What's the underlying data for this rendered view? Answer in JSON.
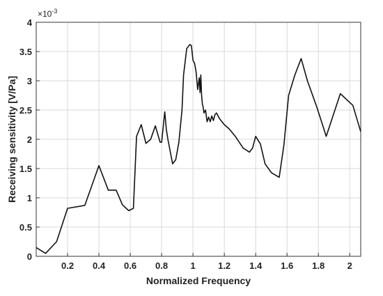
{
  "chart_data": {
    "type": "line",
    "xlabel": "Normalized Frequency",
    "ylabel": "Receiving sensitivity [V/Pa]",
    "y_exponent_base": "×10",
    "y_exponent_power": "-3",
    "xlim": [
      0.0,
      2.07
    ],
    "ylim": [
      0,
      4
    ],
    "x_ticks": [
      0.2,
      0.4,
      0.6,
      0.8,
      1,
      1.2,
      1.4,
      1.6,
      1.8,
      2
    ],
    "x_tick_labels": [
      "0.2",
      "0.4",
      "0.6",
      "0.8",
      "1",
      "1.2",
      "1.4",
      "1.6",
      "1.8",
      "2"
    ],
    "y_ticks": [
      0,
      0.5,
      1,
      1.5,
      2,
      2.5,
      3,
      3.5,
      4
    ],
    "y_tick_labels": [
      "0",
      "0.5",
      "1",
      "1.5",
      "2",
      "2.5",
      "3",
      "3.5",
      "4"
    ],
    "grid": true,
    "line_color": "#111111",
    "grid_color": "#d9d9d9",
    "series": [
      {
        "x": [
          0.0,
          0.06,
          0.13,
          0.2,
          0.31,
          0.4,
          0.46,
          0.51,
          0.55,
          0.59,
          0.62,
          0.64,
          0.67,
          0.7,
          0.73,
          0.76,
          0.79,
          0.8,
          0.82,
          0.83,
          0.84,
          0.87,
          0.89,
          0.91,
          0.93,
          0.94,
          0.96,
          0.98,
          0.99,
          1.0,
          1.01,
          1.02,
          1.03,
          1.04,
          1.045,
          1.05,
          1.055,
          1.06,
          1.065,
          1.07,
          1.08,
          1.09,
          1.1,
          1.11,
          1.12,
          1.13,
          1.14,
          1.15,
          1.17,
          1.2,
          1.23,
          1.27,
          1.32,
          1.36,
          1.38,
          1.4,
          1.43,
          1.46,
          1.5,
          1.55,
          1.58,
          1.61,
          1.65,
          1.69,
          1.73,
          1.79,
          1.85,
          1.94,
          2.02,
          2.07
        ],
        "y": [
          0.15,
          0.05,
          0.25,
          0.82,
          0.87,
          1.55,
          1.13,
          1.13,
          0.88,
          0.78,
          0.82,
          2.05,
          2.25,
          1.93,
          2.0,
          2.23,
          1.95,
          1.95,
          2.47,
          2.17,
          2.0,
          1.58,
          1.65,
          1.95,
          2.5,
          3.1,
          3.55,
          3.62,
          3.6,
          3.35,
          3.3,
          3.15,
          2.85,
          3.05,
          2.8,
          3.1,
          2.75,
          2.6,
          2.55,
          2.45,
          2.5,
          2.3,
          2.38,
          2.3,
          2.4,
          2.32,
          2.42,
          2.45,
          2.35,
          2.25,
          2.18,
          2.05,
          1.85,
          1.78,
          1.85,
          2.05,
          1.92,
          1.58,
          1.43,
          1.35,
          1.9,
          2.75,
          3.1,
          3.38,
          3.0,
          2.55,
          2.05,
          2.78,
          2.58,
          2.13
        ]
      }
    ]
  }
}
